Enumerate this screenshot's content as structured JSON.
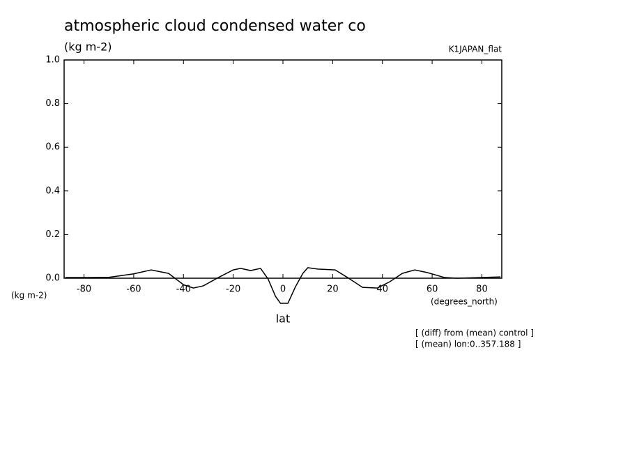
{
  "chart_data": {
    "type": "line",
    "title": "atmospheric cloud condensed water co",
    "subtitle": "(kg m-2)",
    "run_label": "K1JAPAN_flat",
    "y_unit_label": "(kg m-2)",
    "x_unit_label": "(degrees_north)",
    "x_label": "lat",
    "notes": [
      "[ (diff) from (mean) control ]",
      "[ (mean) lon:0..357.188 ]"
    ],
    "x": [
      -87.5,
      -80,
      -70,
      -60,
      -53,
      -46,
      -40,
      -36,
      -32,
      -26,
      -20,
      -17,
      -13,
      -9,
      -6,
      -3,
      -1,
      2,
      5,
      8,
      10,
      14,
      21,
      26,
      32,
      38,
      43,
      48,
      53,
      58,
      65,
      70,
      80,
      87.5
    ],
    "series": [
      {
        "color": "#000000",
        "values": [
          0.003,
          0.003,
          0.004,
          0.02,
          0.038,
          0.022,
          -0.03,
          -0.045,
          -0.035,
          0.003,
          0.038,
          0.045,
          0.035,
          0.045,
          -0.003,
          -0.083,
          -0.115,
          -0.115,
          -0.04,
          0.022,
          0.048,
          0.042,
          0.038,
          0.003,
          -0.042,
          -0.045,
          -0.016,
          0.022,
          0.038,
          0.026,
          0.003,
          0,
          0.003,
          0.006
        ]
      }
    ],
    "xlim": [
      -88,
      88
    ],
    "xticks": [
      -80,
      -60,
      -40,
      -20,
      0,
      20,
      40,
      60,
      80
    ],
    "ylim": [
      0,
      1
    ],
    "yticks": [
      {
        "value": 0,
        "label": "0.0"
      },
      {
        "value": 0.2,
        "label": "0.2"
      },
      {
        "value": 0.4,
        "label": "0.4"
      },
      {
        "value": 0.6,
        "label": "0.6"
      },
      {
        "value": 0.8,
        "label": "0.8"
      },
      {
        "value": 1,
        "label": "1.0"
      }
    ],
    "grid": false
  }
}
